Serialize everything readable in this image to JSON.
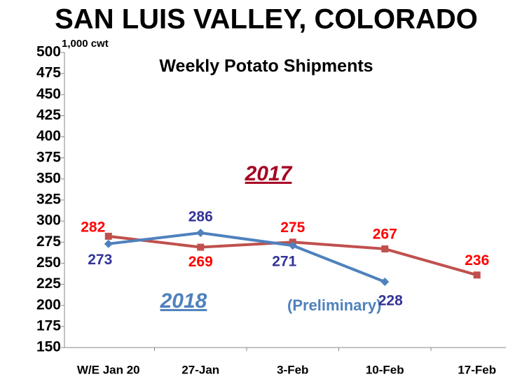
{
  "chart_data": {
    "type": "line",
    "title": "SAN LUIS VALLEY, COLORADO",
    "subtitle": "Weekly Potato Shipments",
    "y_axis_label": "1,000 cwt",
    "annotation": "(Preliminary)",
    "categories": [
      "W/E Jan 20",
      "27-Jan",
      "3-Feb",
      "10-Feb",
      "17-Feb"
    ],
    "series": [
      {
        "name": "2017",
        "color": "#c0504d",
        "label_color": "#ff0000",
        "name_color": "#a50021",
        "marker": "square",
        "values": [
          282,
          269,
          275,
          267,
          236
        ]
      },
      {
        "name": "2018",
        "color": "#4f81bd",
        "label_color": "#333399",
        "name_color": "#4f81bd",
        "marker": "diamond",
        "values": [
          273,
          286,
          271,
          228,
          null
        ]
      }
    ],
    "ylim": [
      150,
      500
    ],
    "yticks": [
      150,
      175,
      200,
      225,
      250,
      275,
      300,
      325,
      350,
      375,
      400,
      425,
      450,
      475,
      500
    ],
    "grid": false
  }
}
